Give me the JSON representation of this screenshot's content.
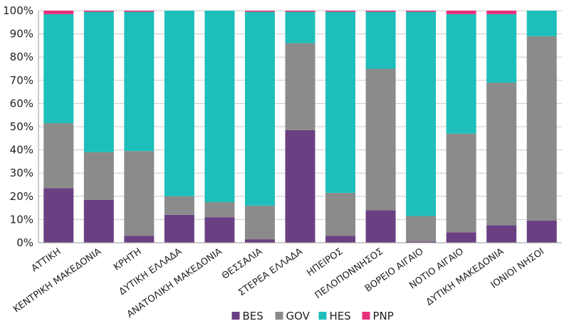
{
  "chart_data": {
    "type": "bar",
    "stacked": true,
    "percent": true,
    "categories": [
      "ΑΤΤΙΚΗ",
      "ΚΕΝΤΡΙΚΗ ΜΑΚΕΔΟΝΙΑ",
      "ΚΡΗΤΗ",
      "ΔΥΤΙΚΗ ΕΛΛΑΔΑ",
      "ΑΝΑΤΟΛΙΚΗ ΜΑΚΕΔΟΝΙΑ",
      "ΘΕΣΣΑΛΙΑ",
      "ΣΤΕΡΕΑ ΕΛΛΑΔΑ",
      "ΗΠΕΙΡΟΣ",
      "ΠΕΛΟΠΟΝΝΗΣΟΣ",
      "ΒΟΡΕΙΟ ΑΙΓΑΙΟ",
      "ΝΟΤΙΟ ΑΙΓΑΙΟ",
      "ΔΥΤΙΚΗ ΜΑΚΕΔΟΝΙΑ",
      "ΙΟΝΙΟΙ ΝΗΣΟΙ"
    ],
    "series": [
      {
        "name": "BES",
        "color": "#6a4083",
        "values": [
          23.5,
          18.5,
          3.0,
          12.0,
          11.0,
          1.5,
          48.5,
          3.0,
          14.0,
          0.5,
          4.5,
          7.5,
          9.5
        ]
      },
      {
        "name": "GOV",
        "color": "#8b8b8b",
        "values": [
          28.0,
          20.5,
          36.5,
          8.0,
          6.5,
          14.5,
          37.5,
          18.5,
          61.0,
          11.0,
          42.5,
          61.5,
          79.5
        ]
      },
      {
        "name": "HES",
        "color": "#1ebfba",
        "values": [
          47.0,
          60.5,
          60.0,
          80.0,
          82.5,
          83.5,
          13.5,
          78.0,
          24.5,
          88.0,
          51.5,
          29.5,
          11.0
        ]
      },
      {
        "name": "PNP",
        "color": "#e8317d",
        "values": [
          1.5,
          0.5,
          0.5,
          0.0,
          0.0,
          0.5,
          0.5,
          0.5,
          0.5,
          0.5,
          1.5,
          1.5,
          0.0
        ]
      }
    ],
    "yticks": [
      "0%",
      "10%",
      "20%",
      "30%",
      "40%",
      "50%",
      "60%",
      "70%",
      "80%",
      "90%",
      "100%"
    ],
    "ylim": [
      0,
      100
    ],
    "grid": true,
    "legend_position": "bottom"
  }
}
